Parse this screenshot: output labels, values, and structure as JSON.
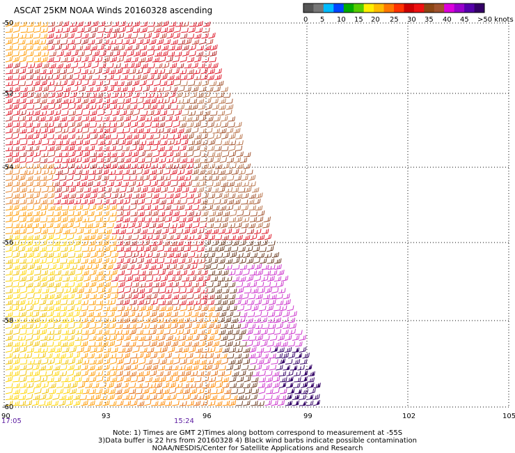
{
  "title": "ASCAT 25KM NOAA Winds 20160328 ascending",
  "legend": {
    "colors": [
      "#555555",
      "#777777",
      "#00bbff",
      "#0044ff",
      "#00aa00",
      "#55cc00",
      "#ffee00",
      "#ffbb00",
      "#ff7700",
      "#ff3300",
      "#cc0000",
      "#ee1111",
      "#8b4513",
      "#a0522d",
      "#dd00dd",
      "#9900cc",
      "#5500aa",
      "#330066"
    ],
    "labels": [
      "0",
      "5",
      "10",
      "15",
      "20",
      "25",
      "30",
      "35",
      "40",
      "45",
      ">50 knots"
    ]
  },
  "axes": {
    "lon_labels": [
      "90",
      "93",
      "96",
      "99",
      "102",
      "105"
    ],
    "lat_labels": [
      "-50",
      "-52",
      "-54",
      "-56",
      "-58",
      "-60"
    ]
  },
  "times": [
    "17:05",
    "15:24"
  ],
  "notes": [
    "Note: 1) Times are GMT 2)Times along bottom correspond to measurement at -55S",
    "3)Data buffer is 22 hrs from 20160328 4) Black wind barbs indicate possible contamination",
    "NOAA/NESDIS/Center for Satellite Applications and Research"
  ]
}
